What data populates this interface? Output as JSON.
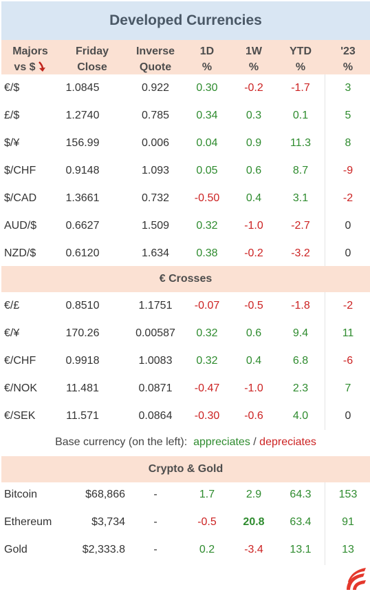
{
  "title": "Developed Currencies",
  "headers": {
    "majors_l1": "Majors",
    "majors_l2": "vs $",
    "friday_l1": "Friday",
    "friday_l2": "Close",
    "inverse_l1": "Inverse",
    "inverse_l2": "Quote",
    "d1_l1": "1D",
    "d1_l2": "%",
    "w1_l1": "1W",
    "w1_l2": "%",
    "ytd_l1": "YTD",
    "ytd_l2": "%",
    "y23_l1": "'23",
    "y23_l2": "%"
  },
  "majors": [
    {
      "pair": "€/$",
      "close": "1.0845",
      "inverse": "0.922",
      "d1": "0.30",
      "w1": "-0.2",
      "ytd": "-1.7",
      "y23": "3"
    },
    {
      "pair": "£/$",
      "close": "1.2740",
      "inverse": "0.785",
      "d1": "0.34",
      "w1": "0.3",
      "ytd": "0.1",
      "y23": "5"
    },
    {
      "pair": "$/¥",
      "close": "156.99",
      "inverse": "0.006",
      "d1": "0.04",
      "w1": "0.9",
      "ytd": "11.3",
      "y23": "8"
    },
    {
      "pair": "$/CHF",
      "close": "0.9148",
      "inverse": "1.093",
      "d1": "0.05",
      "w1": "0.6",
      "ytd": "8.7",
      "y23": "-9"
    },
    {
      "pair": "$/CAD",
      "close": "1.3661",
      "inverse": "0.732",
      "d1": "-0.50",
      "w1": "0.4",
      "ytd": "3.1",
      "y23": "-2"
    },
    {
      "pair": "AUD/$",
      "close": "0.6627",
      "inverse": "1.509",
      "d1": "0.32",
      "w1": "-1.0",
      "ytd": "-2.7",
      "y23": "0"
    },
    {
      "pair": "NZD/$",
      "close": "0.6120",
      "inverse": "1.634",
      "d1": "0.38",
      "w1": "-0.2",
      "ytd": "-3.2",
      "y23": "0"
    }
  ],
  "crosses_title": "€ Crosses",
  "crosses": [
    {
      "pair": "€/£",
      "close": "0.8510",
      "inverse": "1.1751",
      "d1": "-0.07",
      "w1": "-0.5",
      "ytd": "-1.8",
      "y23": "-2"
    },
    {
      "pair": "€/¥",
      "close": "170.26",
      "inverse": "0.00587",
      "d1": "0.32",
      "w1": "0.6",
      "ytd": "9.4",
      "y23": "11"
    },
    {
      "pair": "€/CHF",
      "close": "0.9918",
      "inverse": "1.0083",
      "d1": "0.32",
      "w1": "0.4",
      "ytd": "6.8",
      "y23": "-6"
    },
    {
      "pair": "€/NOK",
      "close": "11.481",
      "inverse": "0.0871",
      "d1": "-0.47",
      "w1": "-1.0",
      "ytd": "2.3",
      "y23": "7"
    },
    {
      "pair": "€/SEK",
      "close": "11.571",
      "inverse": "0.0864",
      "d1": "-0.30",
      "w1": "-0.6",
      "ytd": "4.0",
      "y23": "0"
    }
  ],
  "legend": {
    "prefix": "Base currency (on the left):",
    "appreciates": "appreciates",
    "separator": "/",
    "depreciates": "depreciates"
  },
  "crypto_title": "Crypto & Gold",
  "crypto": [
    {
      "name": "Bitcoin",
      "close": "$68,866",
      "inverse": "-",
      "d1": "1.7",
      "w1": "2.9",
      "ytd": "64.3",
      "y23": "153"
    },
    {
      "name": "Ethereum",
      "close": "$3,734",
      "inverse": "-",
      "d1": "-0.5",
      "w1": "20.8",
      "ytd": "63.4",
      "y23": "91"
    },
    {
      "name": "Gold",
      "close": "$2,333.8",
      "inverse": "-",
      "d1": "0.2",
      "w1": "-3.4",
      "ytd": "13.1",
      "y23": "13"
    }
  ],
  "colors": {
    "positive": "#2e8b2e",
    "negative": "#cc2222",
    "header_bg": "#fbe1d3",
    "title_bg": "#d9e6f3"
  },
  "icons": {
    "sort": "red-down-arrow-icon",
    "logo": "red-flame-logo-icon"
  }
}
